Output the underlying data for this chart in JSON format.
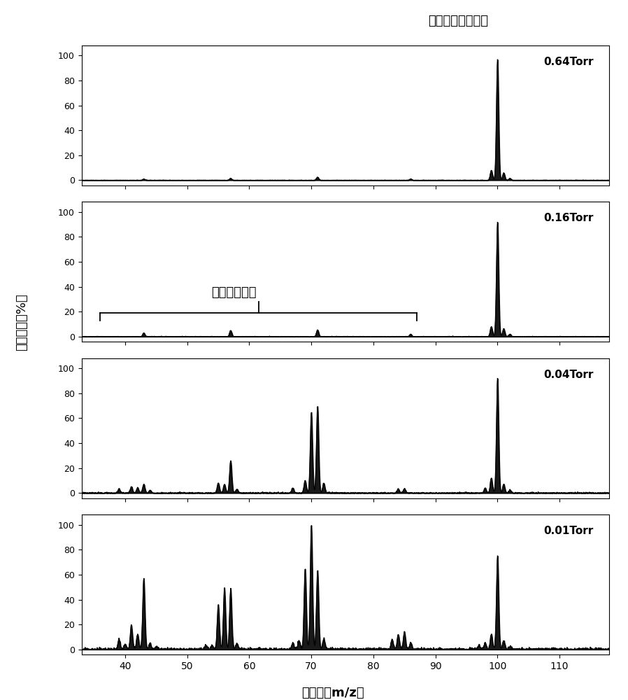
{
  "title_right": "正庚烷分子离子峰",
  "ylabel": "相对强度（%）",
  "xlabel": "质荷比（m/z）",
  "annotation_text": "正庚烷碎片峰",
  "pressures": [
    "0.64Torr",
    "0.16Torr",
    "0.04Torr",
    "0.01Torr"
  ],
  "xlim": [
    33,
    118
  ],
  "yticks": [
    0,
    20,
    40,
    60,
    80,
    100
  ],
  "xticks": [
    40,
    50,
    60,
    70,
    80,
    90,
    100,
    110
  ],
  "spectra": {
    "0.64Torr": {
      "peaks": [
        {
          "mz": 43,
          "intensity": 1.0
        },
        {
          "mz": 57,
          "intensity": 1.5
        },
        {
          "mz": 71,
          "intensity": 2.5
        },
        {
          "mz": 86,
          "intensity": 1.0
        },
        {
          "mz": 99,
          "intensity": 8.0
        },
        {
          "mz": 100,
          "intensity": 97.0
        },
        {
          "mz": 101,
          "intensity": 6.0
        },
        {
          "mz": 102,
          "intensity": 1.5
        }
      ],
      "noise_level": 0.3
    },
    "0.16Torr": {
      "peaks": [
        {
          "mz": 43,
          "intensity": 3.0
        },
        {
          "mz": 57,
          "intensity": 5.0
        },
        {
          "mz": 71,
          "intensity": 5.5
        },
        {
          "mz": 86,
          "intensity": 2.0
        },
        {
          "mz": 99,
          "intensity": 8.0
        },
        {
          "mz": 100,
          "intensity": 92.0
        },
        {
          "mz": 101,
          "intensity": 6.5
        },
        {
          "mz": 102,
          "intensity": 2.0
        }
      ],
      "noise_level": 0.5
    },
    "0.04Torr": {
      "peaks": [
        {
          "mz": 39,
          "intensity": 3.0
        },
        {
          "mz": 41,
          "intensity": 5.0
        },
        {
          "mz": 42,
          "intensity": 4.0
        },
        {
          "mz": 43,
          "intensity": 7.0
        },
        {
          "mz": 44,
          "intensity": 2.0
        },
        {
          "mz": 55,
          "intensity": 8.0
        },
        {
          "mz": 56,
          "intensity": 7.0
        },
        {
          "mz": 57,
          "intensity": 26.0
        },
        {
          "mz": 58,
          "intensity": 3.0
        },
        {
          "mz": 67,
          "intensity": 4.0
        },
        {
          "mz": 69,
          "intensity": 10.0
        },
        {
          "mz": 70,
          "intensity": 65.0
        },
        {
          "mz": 71,
          "intensity": 70.0
        },
        {
          "mz": 72,
          "intensity": 8.0
        },
        {
          "mz": 84,
          "intensity": 3.0
        },
        {
          "mz": 85,
          "intensity": 3.5
        },
        {
          "mz": 98,
          "intensity": 4.0
        },
        {
          "mz": 99,
          "intensity": 12.0
        },
        {
          "mz": 100,
          "intensity": 92.0
        },
        {
          "mz": 101,
          "intensity": 7.0
        },
        {
          "mz": 102,
          "intensity": 2.0
        }
      ],
      "noise_level": 1.0
    },
    "0.01Torr": {
      "peaks": [
        {
          "mz": 39,
          "intensity": 8.0
        },
        {
          "mz": 40,
          "intensity": 4.0
        },
        {
          "mz": 41,
          "intensity": 19.0
        },
        {
          "mz": 42,
          "intensity": 12.0
        },
        {
          "mz": 43,
          "intensity": 57.0
        },
        {
          "mz": 44,
          "intensity": 5.0
        },
        {
          "mz": 45,
          "intensity": 2.0
        },
        {
          "mz": 53,
          "intensity": 3.0
        },
        {
          "mz": 54,
          "intensity": 3.0
        },
        {
          "mz": 55,
          "intensity": 35.0
        },
        {
          "mz": 56,
          "intensity": 49.0
        },
        {
          "mz": 57,
          "intensity": 48.0
        },
        {
          "mz": 58,
          "intensity": 5.0
        },
        {
          "mz": 67,
          "intensity": 5.0
        },
        {
          "mz": 68,
          "intensity": 7.0
        },
        {
          "mz": 69,
          "intensity": 65.0
        },
        {
          "mz": 70,
          "intensity": 100.0
        },
        {
          "mz": 71,
          "intensity": 63.0
        },
        {
          "mz": 72,
          "intensity": 8.0
        },
        {
          "mz": 83,
          "intensity": 8.0
        },
        {
          "mz": 84,
          "intensity": 12.0
        },
        {
          "mz": 85,
          "intensity": 14.0
        },
        {
          "mz": 86,
          "intensity": 5.0
        },
        {
          "mz": 97,
          "intensity": 3.0
        },
        {
          "mz": 98,
          "intensity": 5.0
        },
        {
          "mz": 99,
          "intensity": 12.0
        },
        {
          "mz": 100,
          "intensity": 75.0
        },
        {
          "mz": 101,
          "intensity": 7.0
        },
        {
          "mz": 102,
          "intensity": 2.0
        }
      ],
      "noise_level": 2.0
    }
  }
}
